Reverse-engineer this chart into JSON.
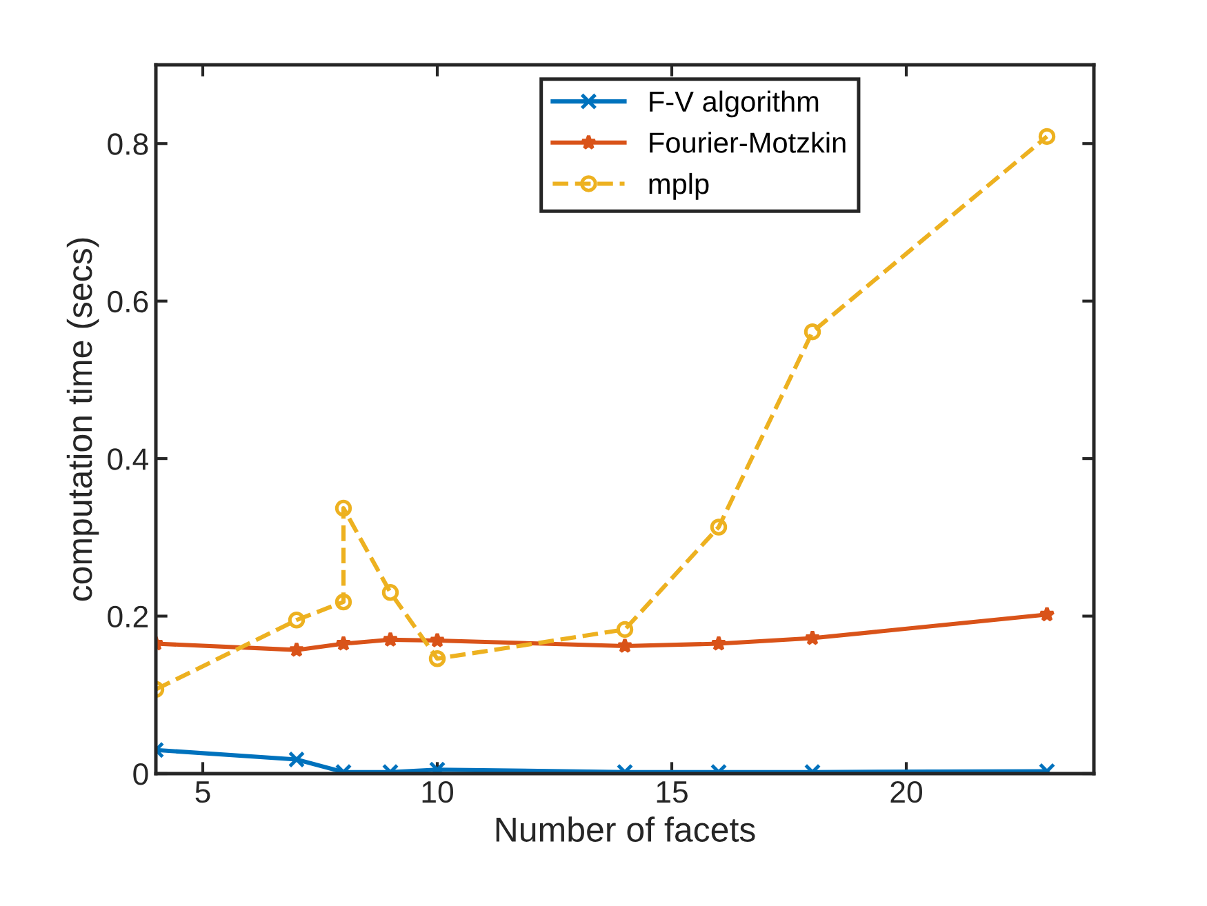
{
  "chart_data": {
    "type": "line",
    "xlabel": "Number of facets",
    "ylabel": "computation time (secs)",
    "xlim": [
      4,
      24
    ],
    "xticks": [
      5,
      10,
      15,
      20
    ],
    "ylim": [
      0,
      0.9
    ],
    "yticks": [
      0,
      0.2,
      0.4,
      0.6,
      0.8
    ],
    "grid": false,
    "legend": "top",
    "series": [
      {
        "name": "F-V algorithm",
        "color": "#0072bd",
        "marker": "cross",
        "line_style": "solid",
        "x": [
          4,
          7,
          8,
          9,
          10,
          14,
          16,
          18,
          23
        ],
        "values": [
          0.03,
          0.018,
          0.002,
          0.002,
          0.005,
          0.002,
          0.002,
          0.002,
          0.003
        ]
      },
      {
        "name": "Fourier-Motzkin",
        "color": "#d95319",
        "marker": "star",
        "line_style": "solid",
        "x": [
          4,
          7,
          8,
          9,
          10,
          14,
          16,
          18,
          23
        ],
        "values": [
          0.165,
          0.157,
          0.165,
          0.17,
          0.169,
          0.162,
          0.165,
          0.172,
          0.202
        ]
      },
      {
        "name": "mplp",
        "color": "#edb120",
        "marker": "circle",
        "line_style": "dashed",
        "x": [
          4,
          7,
          8,
          8,
          9,
          10,
          14,
          16,
          18,
          23
        ],
        "values": [
          0.107,
          0.195,
          0.218,
          0.337,
          0.23,
          0.146,
          0.183,
          0.313,
          0.561,
          0.809
        ]
      }
    ]
  }
}
